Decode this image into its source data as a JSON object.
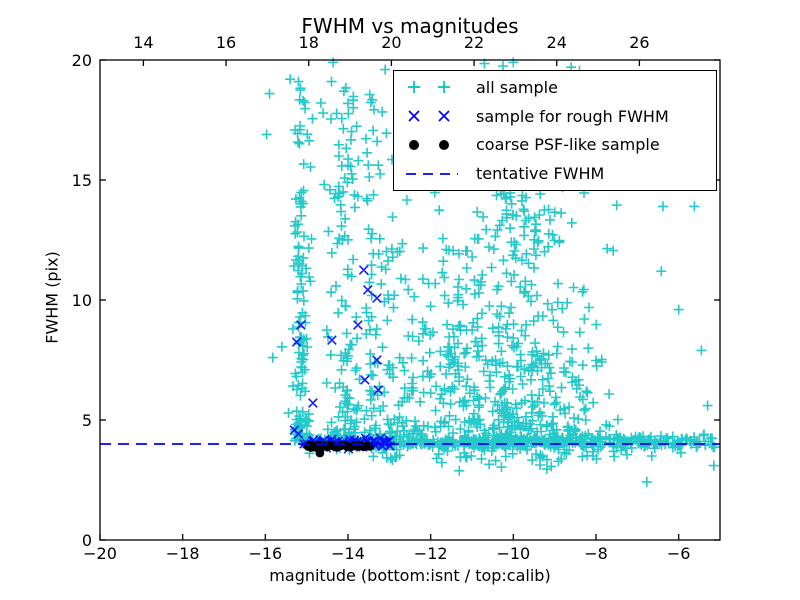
{
  "chart_data": {
    "type": "scatter",
    "title": "FWHM vs magnitudes",
    "xlabel": "magnitude (bottom:isnt / top:calib)",
    "ylabel": "FWHM (pix)",
    "xlim": [
      -20,
      -5
    ],
    "ylim": [
      0,
      20
    ],
    "grid": false,
    "legend_position": "upper right",
    "top_axis_offset": 32.95,
    "seed": 7,
    "xticks_bottom": [
      {
        "v": -20,
        "label": "−20"
      },
      {
        "v": -18,
        "label": "−18"
      },
      {
        "v": -16,
        "label": "−16"
      },
      {
        "v": -14,
        "label": "−14"
      },
      {
        "v": -12,
        "label": "−12"
      },
      {
        "v": -10,
        "label": "−10"
      },
      {
        "v": -8,
        "label": "−8"
      },
      {
        "v": -6,
        "label": "−6"
      }
    ],
    "xticks_top": [
      {
        "v": 14,
        "label": "14"
      },
      {
        "v": 16,
        "label": "16"
      },
      {
        "v": 18,
        "label": "18"
      },
      {
        "v": 20,
        "label": "20"
      },
      {
        "v": 22,
        "label": "22"
      },
      {
        "v": 24,
        "label": "24"
      },
      {
        "v": 26,
        "label": "26"
      }
    ],
    "yticks": [
      {
        "v": 0,
        "label": "0"
      },
      {
        "v": 5,
        "label": "5"
      },
      {
        "v": 10,
        "label": "10"
      },
      {
        "v": 15,
        "label": "15"
      },
      {
        "v": 20,
        "label": "20"
      }
    ],
    "tentative_fwhm": 4.0,
    "colors": {
      "all_sample": "#00bfbf",
      "rough_fwhm": "#0000ff",
      "psf_like": "#000000",
      "tentative_line": "#0000ff",
      "frame": "#000000"
    },
    "legend": [
      {
        "label": "all sample",
        "marker": "plus"
      },
      {
        "label": "sample for rough FWHM",
        "marker": "x"
      },
      {
        "label": "coarse PSF-like sample",
        "marker": "dot"
      },
      {
        "label": "tentative FWHM",
        "marker": "dash"
      }
    ],
    "series": [
      {
        "name": "all sample",
        "marker": "plus",
        "color": "#00bfbf",
        "clusters": [
          {
            "n": 135,
            "x": {
              "mu": -15.12,
              "sigma": 0.1,
              "min": -15.45,
              "max": -14.85
            },
            "y": {
              "min": 4.1,
              "range": 15.5,
              "pow": 2.3
            }
          },
          {
            "n": 115,
            "x": {
              "mu": -14.05,
              "sigma": 0.22,
              "min": -14.62,
              "max": -13.6
            },
            "y": {
              "min": 4.25,
              "range": 15.0,
              "pow": 2.2
            }
          },
          {
            "n": 50,
            "x": {
              "mu": -13.42,
              "sigma": 0.1,
              "min": -13.66,
              "max": -13.18
            },
            "y": {
              "min": 4.2,
              "range": 14.5,
              "pow": 2.0
            }
          },
          {
            "n": 40,
            "x": {
              "min": -14.7,
              "max": -12.5
            },
            "y": {
              "min": 9.0,
              "max": 19.0
            }
          },
          {
            "n": 75,
            "x": {
              "min": -13.25,
              "max": -12.15
            },
            "y": {
              "min": 4.3,
              "range": 8.0,
              "pow": 2.2
            }
          },
          {
            "n": 50,
            "x": {
              "min": -12.2,
              "max": -11.0
            },
            "y": {
              "min": 6.0,
              "max": 12.5
            }
          },
          {
            "n": 540,
            "x": {
              "mu": -9.9,
              "sigma": 1.0,
              "min": -12.4,
              "max": -6.7
            },
            "y": {
              "min": 4.05,
              "pow": 2.5,
              "base": 1.6,
              "h": 9.5,
              "peakMu": -9.85,
              "peakS": 1.35
            }
          },
          {
            "n": 70,
            "x": {
              "mu": -9.8,
              "sigma": 0.95,
              "min": -12.0,
              "max": -7.4
            },
            "y": {
              "min": 12.0,
              "max": 16.2
            }
          },
          {
            "n": 12,
            "x": {
              "mu": -9.9,
              "sigma": 0.7,
              "min": -11.5,
              "max": -8.2
            },
            "y": {
              "min": 16.2,
              "max": 18.2
            }
          },
          {
            "n": 310,
            "x": {
              "min": -15.05,
              "max": -8.55
            },
            "y": {
              "mu": 4.06,
              "sigma": 0.1
            }
          },
          {
            "n": 85,
            "x": {
              "min": -8.55,
              "max": -6.4
            },
            "y": {
              "mu": 4.1,
              "sigma": 0.13
            }
          },
          {
            "n": 42,
            "x": {
              "min": -6.4,
              "max": -5.12
            },
            "y": {
              "mu": 4.05,
              "sigma": 0.15
            }
          },
          {
            "n": 58,
            "x": {
              "mu": -9.7,
              "sigma": 1.25,
              "min": -13.2,
              "max": -6.0
            },
            "y": {
              "min": 2.85,
              "range": 1.05,
              "pow": 0.55
            }
          },
          {
            "n": 10,
            "x": {
              "min": -15.0,
              "max": -12.6
            },
            "y": {
              "min": 3.3,
              "max": 3.75
            }
          }
        ],
        "points": [
          [
            -15.97,
            16.9
          ],
          [
            -15.9,
            18.6
          ],
          [
            -15.82,
            7.6
          ],
          [
            -15.6,
            8.05
          ],
          [
            -15.4,
            19.2
          ],
          [
            -15.2,
            19.1
          ],
          [
            -14.4,
            19.1
          ],
          [
            -14.36,
            19.9
          ],
          [
            -14.1,
            18.7
          ],
          [
            -13.1,
            19.6
          ],
          [
            -10.7,
            19.85
          ],
          [
            -10.25,
            19.75
          ],
          [
            -10.0,
            19.9
          ],
          [
            -8.6,
            19.7
          ],
          [
            -8.4,
            19.55
          ],
          [
            -7.5,
            13.95
          ],
          [
            -6.42,
            11.2
          ],
          [
            -6.38,
            13.9
          ],
          [
            -5.62,
            13.9
          ],
          [
            -6.0,
            9.6
          ],
          [
            -5.45,
            7.9
          ],
          [
            -5.3,
            5.6
          ],
          [
            -6.77,
            2.42
          ],
          [
            -5.15,
            3.1
          ]
        ]
      },
      {
        "name": "sample for rough FWHM",
        "marker": "x",
        "color": "#0000ff",
        "clusters": [
          {
            "n": 65,
            "x": {
              "min": -15.07,
              "max": -12.98
            },
            "y": {
              "mu": 4.03,
              "sigma": 0.09
            }
          }
        ],
        "points": [
          [
            -15.3,
            4.58
          ],
          [
            -15.24,
            8.25
          ],
          [
            -15.14,
            8.96
          ],
          [
            -15.2,
            4.42
          ],
          [
            -14.85,
            5.71
          ],
          [
            -14.39,
            8.33
          ],
          [
            -13.76,
            8.96
          ],
          [
            -13.62,
            11.25
          ],
          [
            -13.59,
            6.67
          ],
          [
            -13.52,
            10.42
          ],
          [
            -13.3,
            10.08
          ],
          [
            -13.3,
            7.5
          ],
          [
            -13.27,
            6.25
          ]
        ]
      },
      {
        "name": "coarse PSF-like sample",
        "marker": "dot",
        "color": "#000000",
        "clusters": [],
        "points": [
          [
            -14.97,
            3.9
          ],
          [
            -14.93,
            3.95
          ],
          [
            -14.89,
            3.85
          ],
          [
            -14.85,
            3.92
          ],
          [
            -14.81,
            3.88
          ],
          [
            -14.77,
            3.95
          ],
          [
            -14.73,
            3.87
          ],
          [
            -14.7,
            3.93
          ],
          [
            -14.66,
            3.9
          ],
          [
            -14.68,
            3.62
          ],
          [
            -14.58,
            3.92
          ],
          [
            -14.5,
            3.88
          ],
          [
            -14.42,
            3.94
          ],
          [
            -14.34,
            3.9
          ],
          [
            -14.26,
            3.86
          ],
          [
            -14.18,
            3.92
          ],
          [
            -14.1,
            3.95
          ],
          [
            -14.02,
            3.9
          ],
          [
            -13.94,
            3.88
          ],
          [
            -13.86,
            3.93
          ],
          [
            -13.78,
            3.9
          ],
          [
            -13.7,
            3.94
          ],
          [
            -13.62,
            3.88
          ],
          [
            -13.55,
            3.92
          ],
          [
            -13.47,
            3.9
          ]
        ]
      },
      {
        "name": "tentative FWHM",
        "type": "hline",
        "color": "#0000ff",
        "y": 4.0,
        "dash": [
          11,
          7
        ]
      }
    ]
  }
}
